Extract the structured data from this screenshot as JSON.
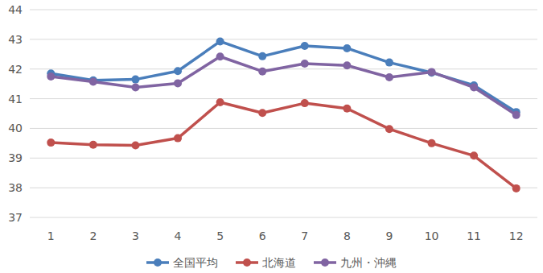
{
  "chart_data": {
    "type": "line",
    "categories": [
      "1",
      "2",
      "3",
      "4",
      "5",
      "6",
      "7",
      "8",
      "9",
      "10",
      "11",
      "12"
    ],
    "series": [
      {
        "name": "全国平均",
        "color": "#4a7ebb",
        "marker": "circle",
        "values": [
          41.85,
          41.62,
          41.65,
          41.93,
          42.93,
          42.43,
          42.78,
          42.7,
          42.22,
          41.88,
          41.45,
          40.55
        ]
      },
      {
        "name": "北海道",
        "color": "#c0504d",
        "marker": "circle",
        "values": [
          39.52,
          39.45,
          39.43,
          39.67,
          40.88,
          40.52,
          40.85,
          40.67,
          39.98,
          39.5,
          39.08,
          37.98
        ]
      },
      {
        "name": "九州・沖縄",
        "color": "#8064a2",
        "marker": "circle",
        "values": [
          41.75,
          41.57,
          41.38,
          41.52,
          42.42,
          41.92,
          42.18,
          42.12,
          41.72,
          41.9,
          41.38,
          40.45
        ]
      }
    ],
    "ylim": [
      37,
      44
    ],
    "yticks": [
      37,
      38,
      39,
      40,
      41,
      42,
      43,
      44
    ],
    "grid": true,
    "legend": "bottom"
  }
}
